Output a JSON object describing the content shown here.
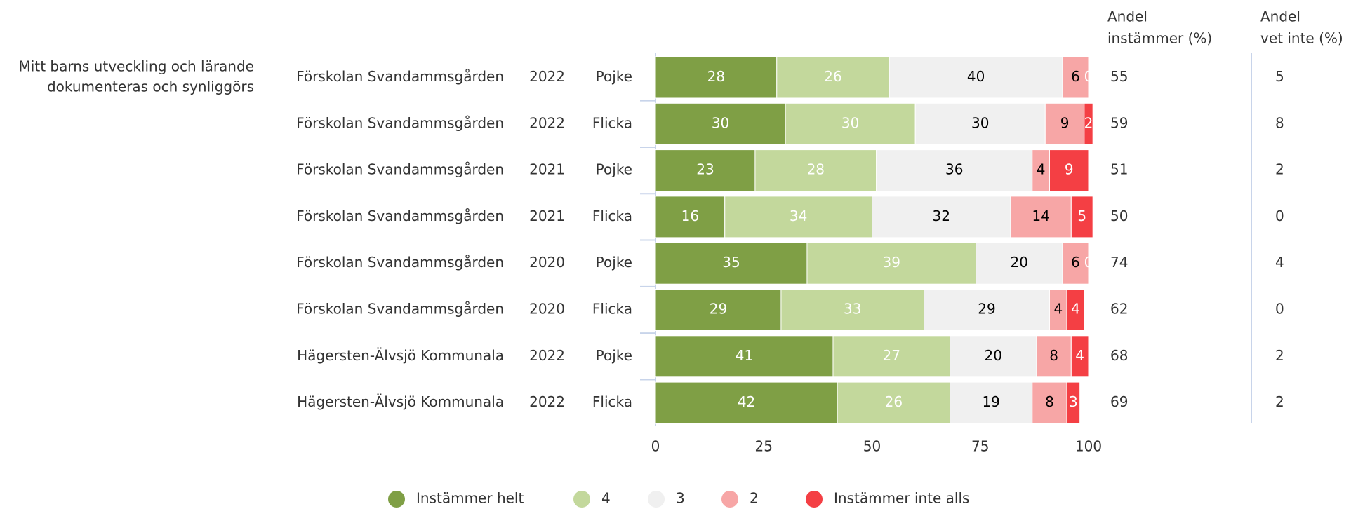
{
  "chart_data": {
    "type": "stacked-bar-horizontal",
    "group_label": [
      "Mitt barns utveckling och lärande",
      "dokumenteras och synliggörs"
    ],
    "categories": [
      "Förskolan Svandammsgården",
      "Förskolan Svandammsgården",
      "Förskolan Svandammsgården",
      "Förskolan Svandammsgården",
      "Förskolan Svandammsgården",
      "Förskolan Svandammsgården",
      "Hägersten-Älvsjö Kommunala",
      "Hägersten-Älvsjö Kommunala"
    ],
    "years": [
      "2022",
      "2022",
      "2021",
      "2021",
      "2020",
      "2020",
      "2022",
      "2022"
    ],
    "genders": [
      "Pojke",
      "Flicka",
      "Pojke",
      "Flicka",
      "Pojke",
      "Flicka",
      "Pojke",
      "Flicka"
    ],
    "series": [
      {
        "name": "Instämmer helt",
        "color": "#7f9f45",
        "label_color": "#ffffff",
        "values": [
          28,
          30,
          23,
          16,
          35,
          29,
          41,
          42
        ]
      },
      {
        "name": "4",
        "color": "#c3d89c",
        "label_color": "#ffffff",
        "values": [
          26,
          30,
          28,
          34,
          39,
          33,
          27,
          26
        ]
      },
      {
        "name": "3",
        "color": "#f0f0f0",
        "label_color": "#000000",
        "values": [
          40,
          30,
          36,
          32,
          20,
          29,
          20,
          19
        ]
      },
      {
        "name": "2",
        "color": "#f7a6a6",
        "label_color": "#000000",
        "values": [
          6,
          9,
          4,
          14,
          6,
          4,
          8,
          8
        ]
      },
      {
        "name": "Instämmer inte alls",
        "color": "#f43f44",
        "label_color": "#ffffff",
        "values": [
          0,
          2,
          9,
          5,
          0,
          4,
          4,
          3
        ]
      }
    ],
    "xlim": [
      0,
      100
    ],
    "xticks": [
      0,
      25,
      50,
      75,
      100
    ],
    "columns": [
      {
        "title": [
          "Andel",
          "instämmer (%)"
        ],
        "values": [
          55,
          59,
          51,
          50,
          74,
          62,
          68,
          69
        ]
      },
      {
        "title": [
          "Andel",
          "vet inte (%)"
        ],
        "values": [
          5,
          8,
          2,
          0,
          4,
          0,
          2,
          2
        ]
      }
    ]
  }
}
